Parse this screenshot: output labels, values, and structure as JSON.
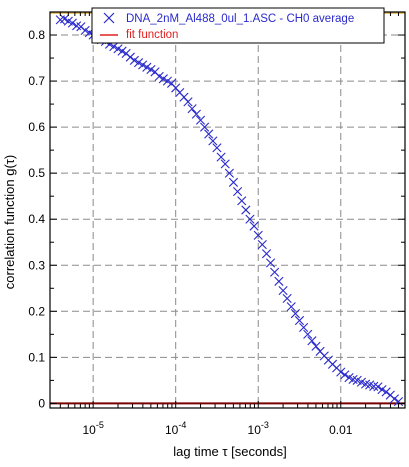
{
  "chart_data": {
    "type": "scatter",
    "xlabel": "lag time τ [seconds]",
    "ylabel": "correlation function g(τ)",
    "x_scale": "log",
    "xlim": [
      3e-06,
      0.06
    ],
    "ylim": [
      -0.01,
      0.85
    ],
    "grid": true,
    "legend_position": "top",
    "x_ticks": [
      {
        "value": 1e-05,
        "label": "10-5"
      },
      {
        "value": 0.0001,
        "label": "10-4"
      },
      {
        "value": 0.001,
        "label": "10-3"
      },
      {
        "value": 0.01,
        "label": "0.01"
      }
    ],
    "y_ticks": [
      0,
      0.1,
      0.2,
      0.3,
      0.4,
      0.5,
      0.6,
      0.7,
      0.8
    ],
    "y_tick_labels": [
      "0",
      "0.1",
      "0.2",
      "0.3",
      "0.4",
      "0.5",
      "0.6",
      "0.7",
      "0.8"
    ],
    "colors": {
      "data": "#2a2acc",
      "fit": "#e02020",
      "zero_line": "#7a0000",
      "top_line": "#ddb040",
      "grid": "#8a8a8a"
    },
    "series": [
      {
        "name": "DNA_2nM_Al488_0ul_1.ASC - CH0 average",
        "marker": "x",
        "x": [
          4e-06,
          4.5e-06,
          5e-06,
          5.6e-06,
          6.3e-06,
          7.1e-06,
          8e-06,
          9e-06,
          1e-05,
          1.12e-05,
          1.26e-05,
          1.41e-05,
          1.58e-05,
          1.78e-05,
          2e-05,
          2.24e-05,
          2.51e-05,
          2.82e-05,
          3.16e-05,
          3.55e-05,
          3.98e-05,
          4.47e-05,
          5.01e-05,
          5.62e-05,
          6.31e-05,
          7.08e-05,
          7.94e-05,
          8.91e-05,
          0.0001,
          0.000112,
          0.000126,
          0.000141,
          0.000158,
          0.000178,
          0.0002,
          0.000224,
          0.000251,
          0.000282,
          0.000316,
          0.000355,
          0.000398,
          0.000447,
          0.000501,
          0.000562,
          0.000631,
          0.000708,
          0.000794,
          0.000891,
          0.001,
          0.00112,
          0.00126,
          0.00141,
          0.00158,
          0.00178,
          0.002,
          0.00224,
          0.00251,
          0.00282,
          0.00316,
          0.00355,
          0.00398,
          0.00447,
          0.00501,
          0.00562,
          0.00631,
          0.00708,
          0.00794,
          0.00891,
          0.01,
          0.0112,
          0.0126,
          0.0141,
          0.0158,
          0.0178,
          0.02,
          0.0224,
          0.0251,
          0.0282,
          0.0316,
          0.0355,
          0.0398,
          0.0447,
          0.05
        ],
        "y": [
          0.833,
          0.835,
          0.83,
          0.826,
          0.82,
          0.818,
          0.81,
          0.805,
          0.8,
          0.795,
          0.79,
          0.786,
          0.78,
          0.775,
          0.77,
          0.765,
          0.76,
          0.752,
          0.745,
          0.74,
          0.735,
          0.73,
          0.725,
          0.72,
          0.71,
          0.705,
          0.7,
          0.695,
          0.685,
          0.675,
          0.665,
          0.655,
          0.64,
          0.628,
          0.615,
          0.6,
          0.585,
          0.57,
          0.555,
          0.535,
          0.52,
          0.5,
          0.48,
          0.46,
          0.44,
          0.42,
          0.4,
          0.385,
          0.365,
          0.345,
          0.325,
          0.305,
          0.285,
          0.265,
          0.245,
          0.228,
          0.21,
          0.195,
          0.18,
          0.165,
          0.15,
          0.136,
          0.124,
          0.113,
          0.103,
          0.094,
          0.085,
          0.077,
          0.068,
          0.062,
          0.056,
          0.052,
          0.05,
          0.046,
          0.042,
          0.04,
          0.037,
          0.036,
          0.03,
          0.025,
          0.018,
          0.01,
          0.004
        ]
      },
      {
        "name": "fit function",
        "marker": "line",
        "x": [],
        "y": []
      }
    ]
  }
}
